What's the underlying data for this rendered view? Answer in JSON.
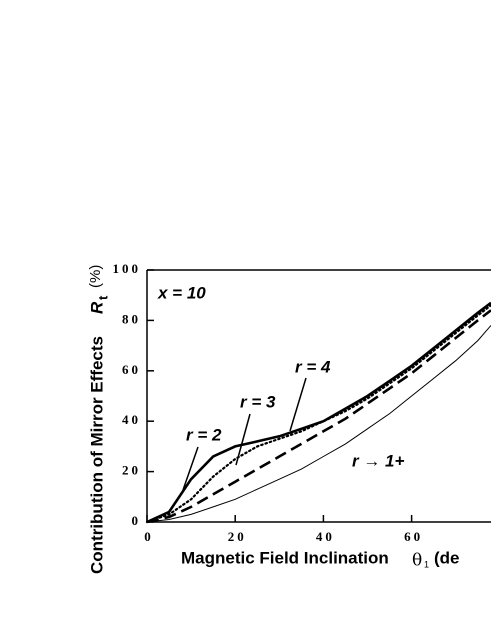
{
  "chart_data": {
    "type": "line",
    "xlabel": [
      "Magnetic Field Inclination",
      "θ",
      "1",
      "(de"
    ],
    "ylabel": [
      "Contribution of Mirror Effects",
      "R",
      "t",
      "(%)"
    ],
    "x": [
      0,
      5,
      10,
      15,
      20,
      25,
      30,
      35,
      40,
      45,
      50,
      55,
      60,
      65,
      70,
      75,
      78
    ],
    "series": [
      {
        "color": "#000000",
        "style": "solid",
        "width": 2.6,
        "values": [
          0,
          4,
          17,
          26,
          30,
          32,
          34,
          37,
          40,
          45,
          50,
          56,
          62,
          69,
          76,
          83,
          87
        ]
      },
      {
        "color": "#000000",
        "style": "dotted",
        "width": 2.2,
        "values": [
          0,
          3,
          9,
          18,
          25,
          30,
          33,
          36,
          40,
          44,
          49,
          55,
          61,
          68,
          75,
          82,
          86
        ]
      },
      {
        "color": "#000000",
        "style": "dashed",
        "width": 2.6,
        "values": [
          0,
          2,
          6,
          11,
          16,
          21,
          26,
          31,
          36,
          41,
          47,
          53,
          59,
          66,
          73,
          80,
          84
        ]
      },
      {
        "color": "#000000",
        "style": "solid",
        "width": 1,
        "values": [
          0,
          1,
          3,
          6,
          9,
          13,
          17,
          21,
          26,
          31,
          37,
          43,
          50,
          57,
          64,
          72,
          78
        ]
      }
    ],
    "annotations": [
      "x = 10",
      "r = 2",
      "r = 3",
      "r = 4",
      "r → 1+"
    ],
    "xlim": [
      0,
      78
    ],
    "xticks": [
      0,
      20,
      40,
      60
    ],
    "ylim": [
      0,
      100
    ],
    "yticks": [
      0,
      20,
      40,
      60,
      80,
      100
    ]
  }
}
